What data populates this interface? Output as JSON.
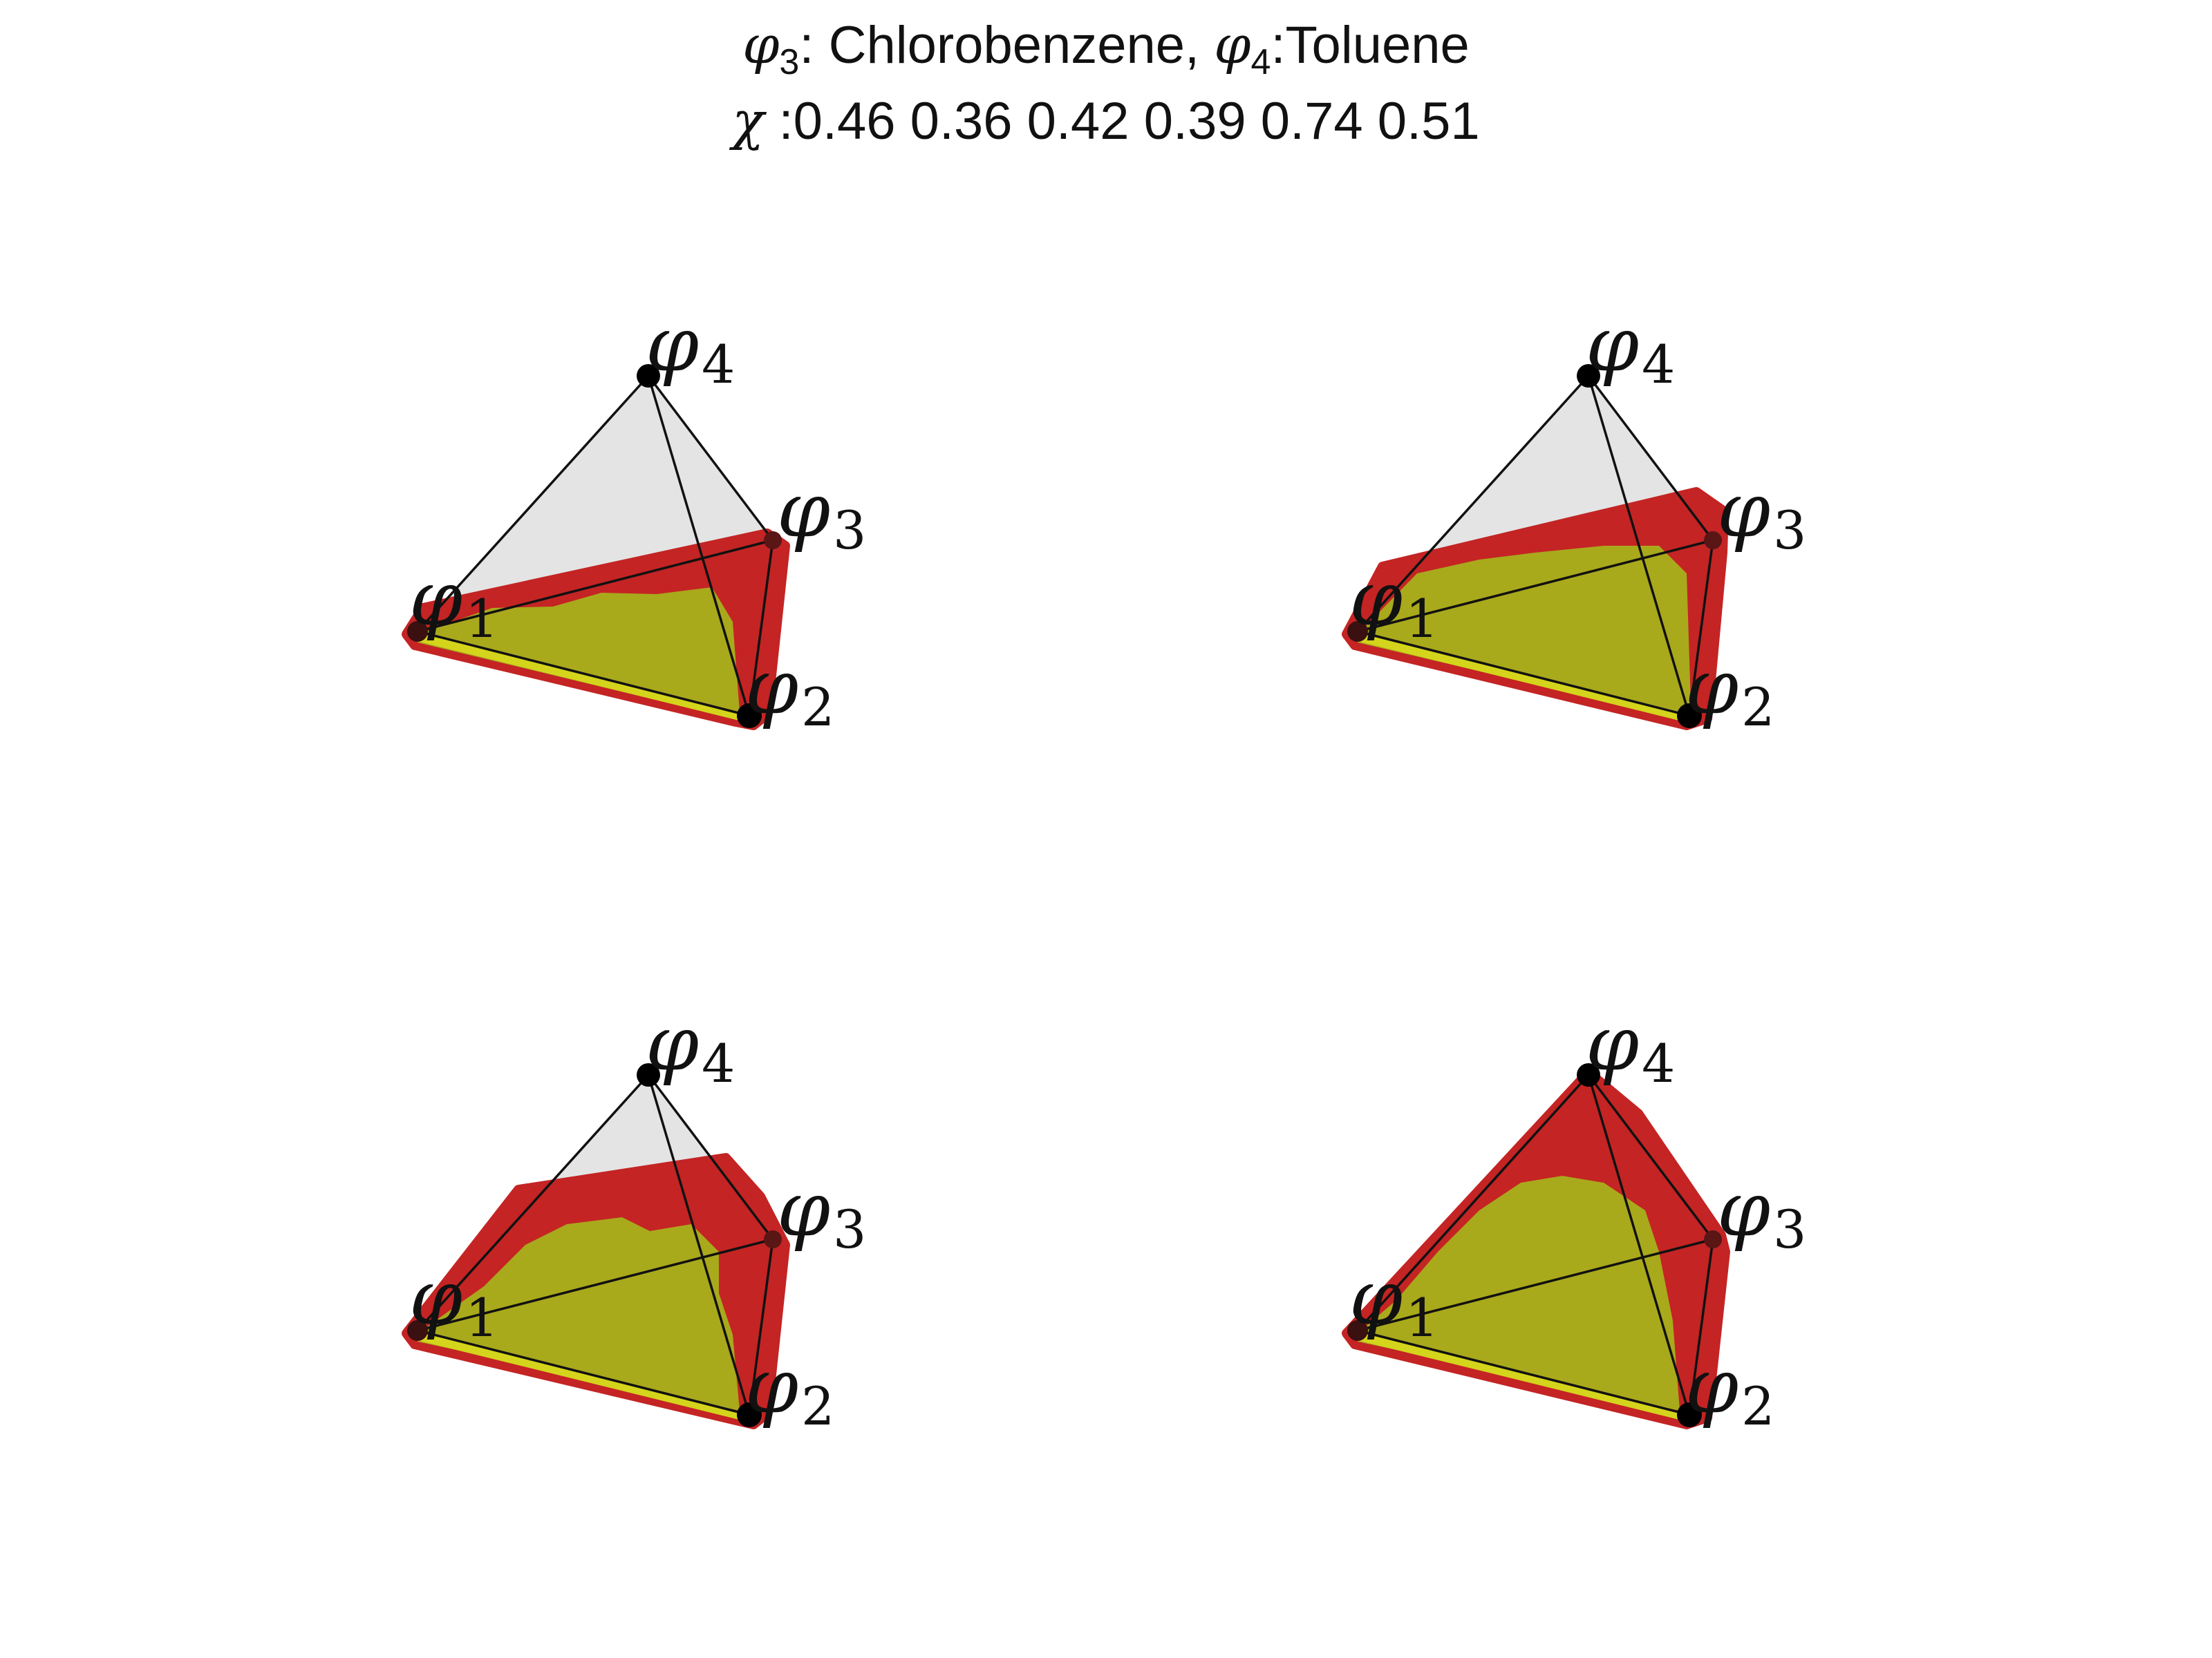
{
  "title": {
    "line1": {
      "sym1": "φ",
      "sub1": "3",
      "text1": ": Chlorobenzene, ",
      "sym2": "φ",
      "sub2": "4",
      "text2": ":Toluene"
    },
    "line2": {
      "sym": "χ",
      "text": " :0.46 0.36 0.42 0.39 0.74 0.51"
    }
  },
  "vertex_labels": {
    "v1": {
      "symbol": "φ",
      "index": "1"
    },
    "v2": {
      "symbol": "φ",
      "index": "2"
    },
    "v3": {
      "symbol": "φ",
      "index": "3"
    },
    "v4": {
      "symbol": "φ",
      "index": "4"
    }
  },
  "colors": {
    "edge": "#111111",
    "vertex": "#000000",
    "empty_face": "#e4e4e4",
    "red_region": "#c42424",
    "yellow_region": "#a9a91c",
    "yellow_edge": "#d4d41c"
  },
  "panels": [
    {
      "id": "top-left"
    },
    {
      "id": "top-right"
    },
    {
      "id": "bottom-left"
    },
    {
      "id": "bottom-right"
    }
  ]
}
